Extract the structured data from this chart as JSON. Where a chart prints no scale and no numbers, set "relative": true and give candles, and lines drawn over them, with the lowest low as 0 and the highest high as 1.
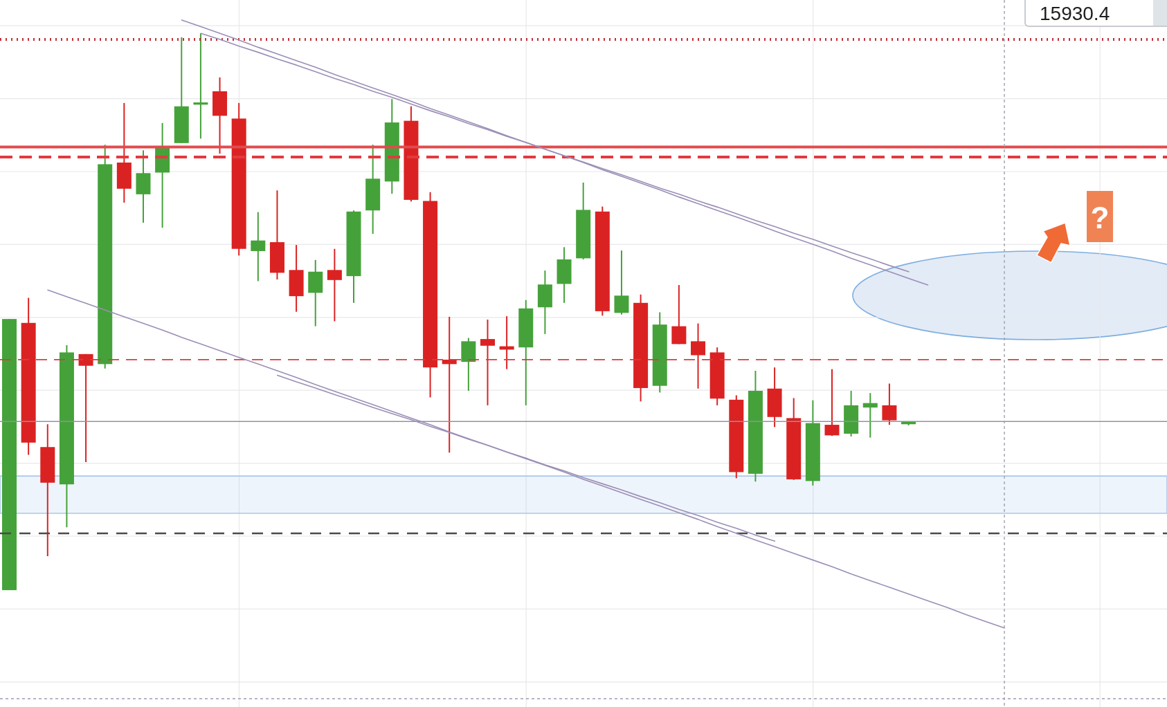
{
  "chart_data": {
    "type": "candlestick",
    "relative": true,
    "grid": true,
    "categories": [
      null,
      null,
      null,
      null,
      null,
      null,
      null,
      null,
      null,
      null,
      null,
      null,
      null,
      null,
      null,
      null,
      null,
      null,
      null,
      null,
      null,
      null,
      null,
      null,
      null,
      null,
      null,
      null,
      null,
      null,
      null,
      null,
      null,
      null,
      null,
      null,
      null,
      null,
      null,
      null,
      null,
      null,
      null,
      null,
      null,
      null,
      null,
      null,
      null,
      null,
      null,
      null,
      null,
      null,
      null,
      null,
      null,
      null,
      null,
      null,
      null
    ],
    "ohlc": [
      [
        0,
        0.487,
        0,
        0.487
      ],
      [
        0.48,
        0.525,
        0.243,
        0.265
      ],
      [
        0.257,
        0.298,
        0.061,
        0.193
      ],
      [
        0.19,
        0.44,
        0.113,
        0.427
      ],
      [
        0.424,
        0.424,
        0.23,
        0.403
      ],
      [
        0.406,
        0.8,
        0.398,
        0.765
      ],
      [
        0.768,
        0.875,
        0.696,
        0.721
      ],
      [
        0.711,
        0.79,
        0.66,
        0.749
      ],
      [
        0.75,
        0.839,
        0.651,
        0.796
      ],
      [
        0.803,
        0.993,
        0.803,
        0.869
      ],
      [
        0.872,
        1,
        0.811,
        0.876
      ],
      [
        0.896,
        0.921,
        0.784,
        0.852
      ],
      [
        0.847,
        0.875,
        0.601,
        0.613
      ],
      [
        0.609,
        0.679,
        0.555,
        0.628
      ],
      [
        0.625,
        0.718,
        0.558,
        0.57
      ],
      [
        0.575,
        0.62,
        0.5,
        0.528
      ],
      [
        0.534,
        0.593,
        0.474,
        0.572
      ],
      [
        0.575,
        0.613,
        0.483,
        0.557
      ],
      [
        0.564,
        0.682,
        0.516,
        0.68
      ],
      [
        0.682,
        0.8,
        0.64,
        0.739
      ],
      [
        0.734,
        0.882,
        0.712,
        0.84
      ],
      [
        0.843,
        0.869,
        0.698,
        0.701
      ],
      [
        0.699,
        0.715,
        0.346,
        0.4
      ],
      [
        0.414,
        0.491,
        0.247,
        0.406
      ],
      [
        0.41,
        0.453,
        0.358,
        0.447
      ],
      [
        0.451,
        0.486,
        0.332,
        0.439
      ],
      [
        0.438,
        0.492,
        0.397,
        0.432
      ],
      [
        0.436,
        0.521,
        0.332,
        0.506
      ],
      [
        0.508,
        0.574,
        0.46,
        0.549
      ],
      [
        0.55,
        0.616,
        0.516,
        0.594
      ],
      [
        0.596,
        0.732,
        0.594,
        0.683
      ],
      [
        0.68,
        0.689,
        0.493,
        0.501
      ],
      [
        0.498,
        0.61,
        0.495,
        0.529
      ],
      [
        0.516,
        0.531,
        0.339,
        0.363
      ],
      [
        0.367,
        0.499,
        0.355,
        0.477
      ],
      [
        0.474,
        0.548,
        0.442,
        0.442
      ],
      [
        0.447,
        0.479,
        0.362,
        0.422
      ],
      [
        0.427,
        0.436,
        0.332,
        0.344
      ],
      [
        0.342,
        0.35,
        0.201,
        0.212
      ],
      [
        0.209,
        0.394,
        0.195,
        0.358
      ],
      [
        0.362,
        0.4,
        0.293,
        0.311
      ],
      [
        0.309,
        0.345,
        0.198,
        0.199
      ],
      [
        0.196,
        0.341,
        0.188,
        0.3
      ],
      [
        0.297,
        0.397,
        0.277,
        0.278
      ],
      [
        0.281,
        0.358,
        0.276,
        0.332
      ],
      [
        0.328,
        0.354,
        0.274,
        0.336
      ],
      [
        0.332,
        0.371,
        0.297,
        0.305
      ],
      [
        0.298,
        0.303,
        0.296,
        0.303
      ],
      null,
      null,
      null,
      null,
      null,
      null,
      null,
      null,
      null,
      null,
      null,
      null,
      null
    ],
    "colors": [
      "#45a23a",
      "#db2222",
      "#db2222",
      "#45a23a",
      "#db2222",
      "#45a23a",
      "#db2222",
      "#45a23a",
      "#45a23a",
      "#45a23a",
      "#45a23a",
      "#db2222",
      "#db2222",
      "#45a23a",
      "#db2222",
      "#db2222",
      "#45a23a",
      "#db2222",
      "#45a23a",
      "#45a23a",
      "#45a23a",
      "#db2222",
      "#db2222",
      "#db2222",
      "#45a23a",
      "#db2222",
      "#db2222",
      "#45a23a",
      "#45a23a",
      "#45a23a",
      "#45a23a",
      "#db2222",
      "#45a23a",
      "#db2222",
      "#45a23a",
      "#db2222",
      "#db2222",
      "#db2222",
      "#db2222",
      "#45a23a",
      "#db2222",
      "#db2222",
      "#45a23a",
      "#db2222",
      "#45a23a",
      "#45a23a",
      "#db2222",
      "#45a23a",
      null,
      null,
      null,
      null,
      null,
      null,
      null,
      null,
      null,
      null,
      null,
      null,
      null
    ],
    "series": [
      {
        "type": "line",
        "color": "#9b8eb6",
        "values": [
          null,
          null,
          null,
          null,
          null,
          null,
          null,
          null,
          null,
          1.024,
          1.012,
          1,
          0.988,
          0.975,
          0.963,
          0.951,
          0.939,
          0.926,
          0.914,
          0.902,
          0.89,
          0.878,
          0.865,
          0.853,
          0.841,
          0.829,
          0.816,
          0.804,
          0.792,
          0.78,
          0.768,
          0.755,
          0.743,
          0.731,
          0.719,
          0.706,
          0.694,
          0.682,
          0.67,
          0.658,
          0.645,
          0.633,
          0.621,
          0.609,
          0.596,
          0.584,
          0.572,
          0.56,
          0.548,
          null,
          null,
          null,
          null,
          null,
          null,
          null,
          null,
          null,
          null,
          null,
          null
        ]
      },
      {
        "type": "line",
        "color": "#9b8eb6",
        "values": [
          null,
          null,
          null,
          null,
          null,
          null,
          null,
          null,
          null,
          null,
          1,
          0.989,
          0.977,
          0.966,
          0.954,
          0.943,
          0.931,
          0.919,
          0.908,
          0.896,
          0.885,
          0.873,
          0.861,
          0.85,
          0.838,
          0.827,
          0.815,
          0.804,
          0.792,
          0.78,
          0.769,
          0.757,
          0.746,
          0.734,
          0.722,
          0.711,
          0.699,
          0.688,
          0.676,
          0.664,
          0.653,
          0.641,
          0.63,
          0.618,
          0.606,
          0.595,
          0.583,
          0.572,
          null,
          null,
          null,
          null,
          null,
          null,
          null,
          null,
          null,
          null,
          null,
          null,
          null
        ]
      },
      {
        "type": "line",
        "color": "#9b8eb6",
        "values": [
          null,
          null,
          0.539,
          0.527,
          0.515,
          0.503,
          0.491,
          0.479,
          0.467,
          0.454,
          0.442,
          0.43,
          0.418,
          0.406,
          0.394,
          0.382,
          0.369,
          0.357,
          0.345,
          0.333,
          0.321,
          0.309,
          0.297,
          0.284,
          0.272,
          0.26,
          0.248,
          0.236,
          0.224,
          0.212,
          0.199,
          0.187,
          0.175,
          0.163,
          0.151,
          0.139,
          0.127,
          0.114,
          0.102,
          0.09,
          0.078,
          0.066,
          0.054,
          0.042,
          0.029,
          0.017,
          0.005,
          -0.007,
          -0.019,
          -0.031,
          -0.044,
          -0.056,
          -0.068,
          null,
          null,
          null,
          null,
          null,
          null,
          null,
          null
        ]
      },
      {
        "type": "line",
        "color": "#9b8eb6",
        "values": [
          null,
          null,
          null,
          null,
          null,
          null,
          null,
          null,
          null,
          null,
          null,
          null,
          null,
          null,
          0.386,
          0.374,
          0.363,
          0.351,
          0.34,
          0.328,
          0.317,
          0.306,
          0.294,
          0.283,
          0.271,
          0.26,
          0.248,
          0.237,
          0.225,
          0.214,
          0.202,
          0.191,
          0.18,
          0.168,
          0.157,
          0.145,
          0.134,
          0.122,
          0.111,
          0.099,
          0.088,
          null,
          null,
          null,
          null,
          null,
          null,
          null,
          null,
          null,
          null,
          null,
          null,
          null,
          null,
          null,
          null,
          null,
          null,
          null,
          null
        ]
      }
    ],
    "ref_lines": [
      {
        "axis": "y",
        "value": 0.989,
        "color": "#c4303a",
        "line_style": "dotted"
      },
      {
        "axis": "y",
        "value": 0.796,
        "color": "#e24b4f",
        "line_style": "solid"
      },
      {
        "axis": "y",
        "value": 0.778,
        "color": "#e23a3f",
        "line_style": "dashed"
      },
      {
        "axis": "y",
        "value": 0.414,
        "color": "#dc3a40",
        "line_style": "dashed"
      },
      {
        "axis": "y",
        "value": 0.303,
        "color": "#8b95a3",
        "line_style": "solid"
      },
      {
        "axis": "y",
        "value": 0.102,
        "color": "#4a4a4a",
        "line_style": "dashed"
      },
      {
        "axis": "y",
        "value": -0.195,
        "color": "#9b9db4",
        "line_style": "dashed"
      }
    ],
    "bands": [
      {
        "axis": "y",
        "from": 0.138,
        "to": 0.205,
        "color": "#a9c7ea"
      }
    ],
    "annotations": [
      "15930.4",
      "?"
    ]
  }
}
